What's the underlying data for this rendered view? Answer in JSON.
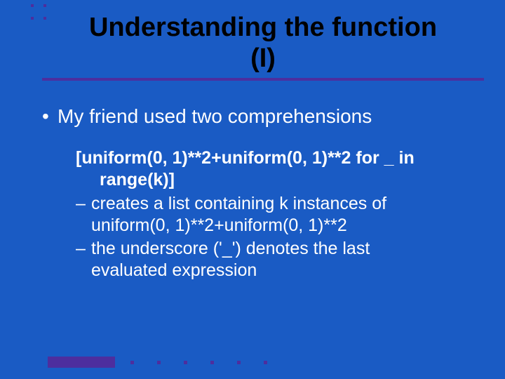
{
  "colors": {
    "background": "#1a5bc4",
    "accent": "#4d2e9e",
    "title": "#000000",
    "body": "#ffffff"
  },
  "title": {
    "line1": "Understanding the function",
    "line2": "(I)",
    "fontsize": 38,
    "fontweight": 700,
    "underline_width": 4
  },
  "bullets": {
    "level1_fontsize": 28,
    "level2_fontsize": 25,
    "l1": "My friend used two  comprehensions",
    "code": {
      "main": "[uniform(0, 1)**2+uniform(0, 1)**2 for _ in",
      "wrap": "range(k)]",
      "fontweight": 700
    },
    "sub1": {
      "l": "creates a list containing k instances of",
      "cont": "uniform(0, 1)**2+uniform(0, 1)**2"
    },
    "sub2": {
      "l": "the underscore ('_') denotes the last",
      "cont": "evaluated expression"
    }
  },
  "decorations": {
    "top_dots": {
      "count": 4,
      "size": 4,
      "spacing": 18
    },
    "bottom": {
      "bar": {
        "width": 96,
        "height": 16
      },
      "dot_size": 5,
      "dot_offsets": [
        118,
        156,
        194,
        232,
        270,
        308
      ]
    }
  }
}
